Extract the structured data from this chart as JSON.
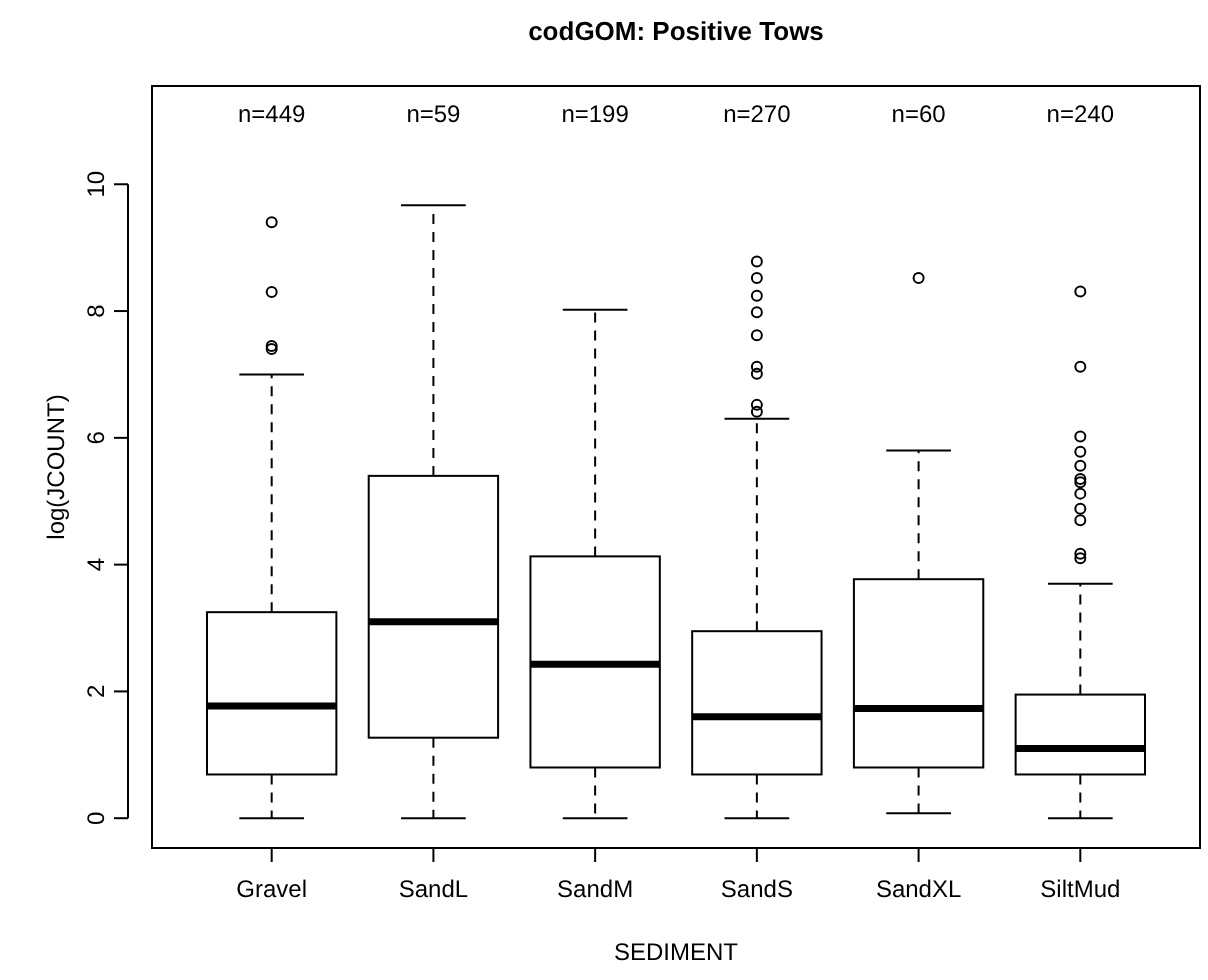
{
  "chart_data": {
    "type": "box",
    "title": "codGOM: Positive Tows",
    "xlabel": "SEDIMENT",
    "ylabel": "log(JCOUNT)",
    "categories": [
      "Gravel",
      "SandL",
      "SandM",
      "SandS",
      "SandXL",
      "SiltMud"
    ],
    "boxes": [
      {
        "low": 0,
        "q1": 0.69,
        "median": 1.77,
        "q3": 3.25,
        "high": 7.0,
        "outliers": [
          9.4,
          8.3,
          7.45,
          7.4
        ]
      },
      {
        "low": 0,
        "q1": 1.27,
        "median": 3.1,
        "q3": 5.4,
        "high": 9.67
      },
      {
        "low": 0,
        "q1": 0.8,
        "median": 2.43,
        "q3": 4.13,
        "high": 8.02
      },
      {
        "low": 0,
        "q1": 0.69,
        "median": 1.6,
        "q3": 2.95,
        "high": 6.3,
        "outliers": [
          8.78,
          8.52,
          8.24,
          7.98,
          7.62,
          7.12,
          7.01,
          6.52,
          6.41
        ]
      },
      {
        "low": 0.08,
        "q1": 0.8,
        "median": 1.73,
        "q3": 3.77,
        "high": 5.8,
        "outliers": [
          8.52
        ]
      },
      {
        "low": 0,
        "q1": 0.69,
        "median": 1.1,
        "q3": 1.95,
        "high": 3.7,
        "outliers": [
          8.31,
          7.12,
          6.02,
          5.78,
          5.56,
          5.35,
          5.3,
          5.12,
          4.88,
          4.7,
          4.17,
          4.1
        ]
      }
    ],
    "annotations": [
      "n=449",
      "n=59",
      "n=199",
      "n=270",
      "n=60",
      "n=240"
    ],
    "ylim": [
      -0.47,
      11.55
    ],
    "yticks": [
      0,
      2,
      4,
      6,
      8,
      10
    ],
    "grid": false
  }
}
